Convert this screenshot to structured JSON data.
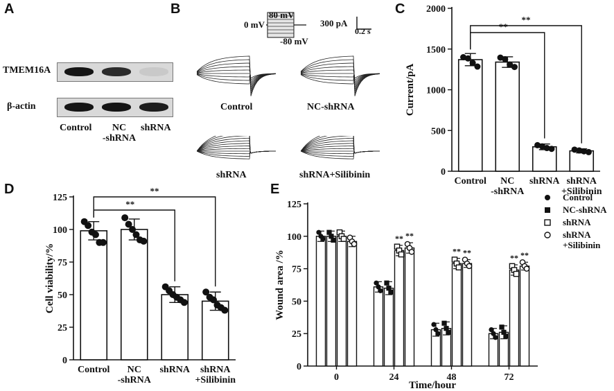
{
  "panels": {
    "a": "A",
    "b": "B",
    "c": "C",
    "d": "D",
    "e": "E"
  },
  "western_blot": {
    "row_labels": [
      "TMEM16A",
      "β-actin"
    ],
    "lane_labels": [
      "Control",
      "NC\n-shRNA",
      "shRNA"
    ],
    "band_intensity": {
      "TMEM16A": [
        0.95,
        0.85,
        0.15
      ],
      "β-actin": [
        0.95,
        0.95,
        0.92
      ]
    }
  },
  "traces": {
    "protocol": {
      "v_hold": "0 mV",
      "v_top": "80 mV",
      "v_bottom": "-80 mV"
    },
    "scale": {
      "current": "300 pA",
      "time": "0.2 s"
    },
    "labels": [
      "Control",
      "NC-shRNA",
      "shRNA",
      "shRNA+Silibinin"
    ]
  },
  "chart_data": [
    {
      "id": "C",
      "type": "bar",
      "ylabel": "Current/pA",
      "ylim": [
        0,
        2000
      ],
      "yticks": [
        0,
        500,
        1000,
        1500,
        2000
      ],
      "categories": [
        "Control",
        "NC\n-shRNA",
        "shRNA",
        "shRNA\n+Silibinin"
      ],
      "values": [
        1370,
        1340,
        300,
        250
      ],
      "errors": [
        75,
        65,
        35,
        25
      ],
      "points": [
        [
          1400,
          1385,
          1330,
          1285
        ],
        [
          1395,
          1375,
          1310,
          1280
        ],
        [
          320,
          305,
          285,
          275
        ],
        [
          265,
          255,
          245,
          235
        ]
      ],
      "significance": [
        {
          "from": 0,
          "to": 2,
          "label": "**"
        },
        {
          "from": 0,
          "to": 3,
          "label": "**"
        }
      ]
    },
    {
      "id": "D",
      "type": "bar",
      "ylabel": "Cell viability/%",
      "ylim": [
        0,
        125
      ],
      "yticks": [
        0,
        25,
        50,
        75,
        100,
        125
      ],
      "categories": [
        "Control",
        "NC\n-shRNA",
        "shRNA",
        "shRNA\n+Silibinin"
      ],
      "values": [
        99,
        100,
        50,
        45
      ],
      "errors": [
        7,
        8,
        6,
        7
      ],
      "points": [
        [
          106,
          103,
          98,
          96,
          90,
          90
        ],
        [
          109,
          104,
          100,
          96,
          92,
          91
        ],
        [
          56,
          53,
          50,
          48,
          46,
          44
        ],
        [
          52,
          48,
          46,
          42,
          40,
          38
        ]
      ],
      "significance": [
        {
          "from": 0,
          "to": 2,
          "label": "**"
        },
        {
          "from": 0,
          "to": 3,
          "label": "**"
        }
      ]
    },
    {
      "id": "E",
      "type": "bar",
      "xlabel": "Time/hour",
      "ylabel": "Wound area /%",
      "ylim": [
        0,
        125
      ],
      "yticks": [
        0,
        25,
        50,
        75,
        100,
        125
      ],
      "categories": [
        "0",
        "24",
        "48",
        "72"
      ],
      "series": [
        {
          "name": "Control",
          "marker": "circle-filled",
          "values": [
            100,
            61,
            28,
            25
          ],
          "errors": [
            4,
            4,
            5,
            4
          ],
          "points": [
            [
              103,
              100,
              98
            ],
            [
              64,
              61,
              58
            ],
            [
              32,
              28,
              25
            ],
            [
              28,
              25,
              22
            ]
          ]
        },
        {
          "name": "NC-shRNA",
          "marker": "square-filled",
          "values": [
            100,
            60,
            29,
            26
          ],
          "errors": [
            4,
            5,
            5,
            5
          ],
          "points": [
            [
              103,
              100,
              97
            ],
            [
              64,
              60,
              57
            ],
            [
              33,
              29,
              26
            ],
            [
              30,
              26,
              23
            ]
          ]
        },
        {
          "name": "shRNA",
          "marker": "square-open",
          "values": [
            100,
            89,
            79,
            74
          ],
          "errors": [
            4,
            4,
            4,
            4
          ],
          "points": [
            [
              103,
              100,
              98
            ],
            [
              92,
              89,
              86
            ],
            [
              82,
              79,
              76
            ],
            [
              77,
              74,
              71
            ]
          ]
        },
        {
          "name": "shRNA\n+Silibinin",
          "marker": "circle-open",
          "values": [
            96,
            91,
            79,
            77
          ],
          "errors": [
            4,
            4,
            3,
            3
          ],
          "points": [
            [
              99,
              96,
              94
            ],
            [
              94,
              91,
              88
            ],
            [
              82,
              79,
              77
            ],
            [
              80,
              77,
              75
            ]
          ]
        }
      ],
      "annotations": [
        {
          "time_index": 1,
          "series_index": 2,
          "label": "**"
        },
        {
          "time_index": 1,
          "series_index": 3,
          "label": "**"
        },
        {
          "time_index": 2,
          "series_index": 2,
          "label": "**"
        },
        {
          "time_index": 2,
          "series_index": 3,
          "label": "**"
        },
        {
          "time_index": 3,
          "series_index": 2,
          "label": "**"
        },
        {
          "time_index": 3,
          "series_index": 3,
          "label": "**"
        }
      ]
    }
  ]
}
